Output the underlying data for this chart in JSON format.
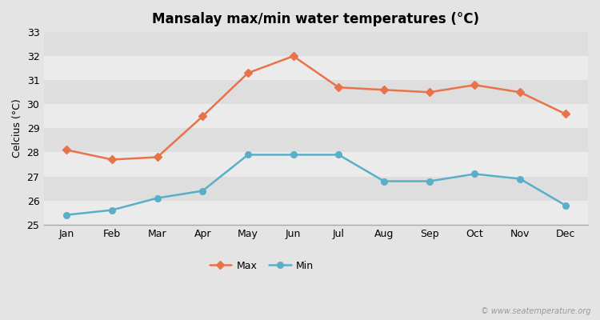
{
  "title": "Mansalay max/min water temperatures (°C)",
  "ylabel": "Celcius (°C)",
  "months": [
    "Jan",
    "Feb",
    "Mar",
    "Apr",
    "May",
    "Jun",
    "Jul",
    "Aug",
    "Sep",
    "Oct",
    "Nov",
    "Dec"
  ],
  "max_temps": [
    28.1,
    27.7,
    27.8,
    29.5,
    31.3,
    32.0,
    30.7,
    30.6,
    30.5,
    30.8,
    30.5,
    29.6
  ],
  "min_temps": [
    25.4,
    25.6,
    26.1,
    26.4,
    27.9,
    27.9,
    27.9,
    26.8,
    26.8,
    27.1,
    26.9,
    25.8
  ],
  "max_color": "#e8734a",
  "min_color": "#5aafc8",
  "fig_bg_color": "#e4e4e4",
  "band_light": "#ebebeb",
  "band_dark": "#dedede",
  "ylim": [
    25,
    33
  ],
  "yticks": [
    25,
    26,
    27,
    28,
    29,
    30,
    31,
    32,
    33
  ],
  "watermark": "© www.seatemperature.org",
  "legend_labels": [
    "Max",
    "Min"
  ],
  "title_fontsize": 12,
  "axis_fontsize": 9,
  "tick_fontsize": 9
}
